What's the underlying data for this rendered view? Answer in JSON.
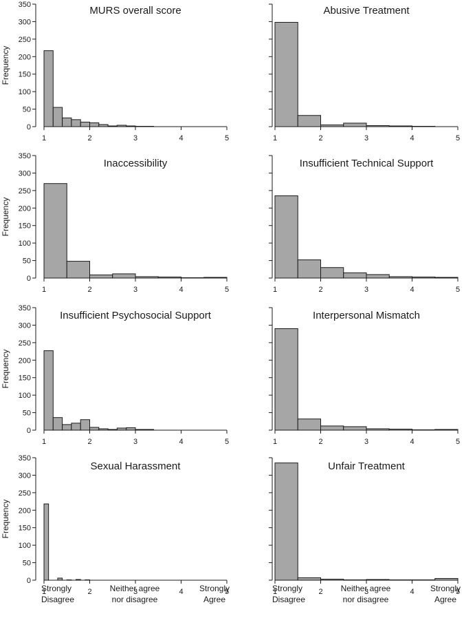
{
  "colors": {
    "bar_fill": "#a6a6a6",
    "bar_stroke": "#1a1a1a",
    "axis": "#1a1a1a"
  },
  "x_category_labels": {
    "strongly_disagree": [
      "Strongly",
      "Disagree"
    ],
    "neither": [
      "Neither agree",
      "nor disagree"
    ],
    "strongly_agree": [
      "Strongly",
      "Agree"
    ]
  },
  "chart_data": [
    {
      "type": "bar",
      "title": "MURS overall score",
      "ylabel": "Frequency",
      "xlim": [
        1,
        5
      ],
      "ylim": [
        0,
        350
      ],
      "xticks": [
        1,
        2,
        3,
        4,
        5
      ],
      "yticks": [
        0,
        50,
        100,
        150,
        200,
        250,
        300,
        350
      ],
      "bins": [
        [
          1.0,
          1.2
        ],
        [
          1.2,
          1.4
        ],
        [
          1.4,
          1.6
        ],
        [
          1.6,
          1.8
        ],
        [
          1.8,
          2.0
        ],
        [
          2.0,
          2.2
        ],
        [
          2.2,
          2.4
        ],
        [
          2.4,
          2.6
        ],
        [
          2.6,
          2.8
        ],
        [
          2.8,
          3.0
        ],
        [
          3.0,
          3.2
        ],
        [
          3.2,
          3.4
        ]
      ],
      "values": [
        217,
        55,
        25,
        20,
        13,
        11,
        6,
        2,
        4,
        2,
        1,
        1
      ]
    },
    {
      "type": "bar",
      "title": "Abusive Treatment",
      "ylabel": "",
      "xlim": [
        1,
        5
      ],
      "ylim": [
        0,
        350
      ],
      "xticks": [
        1,
        2,
        3,
        4,
        5
      ],
      "yticks": [],
      "bins": [
        [
          1.0,
          1.5
        ],
        [
          1.5,
          2.0
        ],
        [
          2.0,
          2.5
        ],
        [
          2.5,
          3.0
        ],
        [
          3.0,
          3.5
        ],
        [
          3.5,
          4.0
        ],
        [
          4.0,
          4.5
        ]
      ],
      "values": [
        298,
        32,
        5,
        10,
        3,
        2,
        1
      ]
    },
    {
      "type": "bar",
      "title": "Inaccessibility",
      "ylabel": "Frequency",
      "xlim": [
        1,
        5
      ],
      "ylim": [
        0,
        350
      ],
      "xticks": [
        1,
        2,
        3,
        4,
        5
      ],
      "yticks": [
        0,
        50,
        100,
        150,
        200,
        250,
        300,
        350
      ],
      "bins": [
        [
          1.0,
          1.5
        ],
        [
          1.5,
          2.0
        ],
        [
          2.0,
          2.5
        ],
        [
          2.5,
          3.0
        ],
        [
          3.0,
          3.5
        ],
        [
          3.5,
          4.0
        ],
        [
          4.0,
          4.5
        ],
        [
          4.5,
          5.0
        ]
      ],
      "values": [
        270,
        48,
        9,
        12,
        4,
        3,
        1,
        2
      ]
    },
    {
      "type": "bar",
      "title": "Insufficient Technical Support",
      "ylabel": "",
      "xlim": [
        1,
        5
      ],
      "ylim": [
        0,
        350
      ],
      "xticks": [
        1,
        2,
        3,
        4,
        5
      ],
      "yticks": [],
      "bins": [
        [
          1.0,
          1.5
        ],
        [
          1.5,
          2.0
        ],
        [
          2.0,
          2.5
        ],
        [
          2.5,
          3.0
        ],
        [
          3.0,
          3.5
        ],
        [
          3.5,
          4.0
        ],
        [
          4.0,
          4.5
        ],
        [
          4.5,
          5.0
        ]
      ],
      "values": [
        235,
        52,
        30,
        15,
        10,
        4,
        3,
        2
      ]
    },
    {
      "type": "bar",
      "title": "Insufficient Psychosocial Support",
      "ylabel": "Frequency",
      "xlim": [
        1,
        5
      ],
      "ylim": [
        0,
        350
      ],
      "xticks": [
        1,
        2,
        3,
        4,
        5
      ],
      "yticks": [
        0,
        50,
        100,
        150,
        200,
        250,
        300,
        350
      ],
      "bins": [
        [
          1.0,
          1.2
        ],
        [
          1.2,
          1.4
        ],
        [
          1.4,
          1.6
        ],
        [
          1.6,
          1.8
        ],
        [
          1.8,
          2.0
        ],
        [
          2.0,
          2.2
        ],
        [
          2.2,
          2.4
        ],
        [
          2.4,
          2.6
        ],
        [
          2.6,
          2.8
        ],
        [
          2.8,
          3.0
        ],
        [
          3.0,
          3.2
        ],
        [
          3.2,
          3.4
        ]
      ],
      "values": [
        227,
        36,
        16,
        20,
        30,
        8,
        4,
        2,
        6,
        7,
        2,
        2
      ]
    },
    {
      "type": "bar",
      "title": "Interpersonal Mismatch",
      "ylabel": "",
      "xlim": [
        1,
        5
      ],
      "ylim": [
        0,
        350
      ],
      "xticks": [
        1,
        2,
        3,
        4,
        5
      ],
      "yticks": [],
      "bins": [
        [
          1.0,
          1.5
        ],
        [
          1.5,
          2.0
        ],
        [
          2.0,
          2.5
        ],
        [
          2.5,
          3.0
        ],
        [
          3.0,
          3.5
        ],
        [
          3.5,
          4.0
        ],
        [
          4.0,
          4.5
        ],
        [
          4.5,
          5.0
        ]
      ],
      "values": [
        290,
        32,
        12,
        10,
        4,
        3,
        1,
        2
      ]
    },
    {
      "type": "bar",
      "title": "Sexual Harassment",
      "ylabel": "Frequency",
      "xlim": [
        1,
        5
      ],
      "ylim": [
        0,
        350
      ],
      "xticks": [
        1,
        2,
        3,
        4,
        5
      ],
      "yticks": [
        0,
        50,
        100,
        150,
        200,
        250,
        300,
        350
      ],
      "bins": [
        [
          1.0,
          1.1
        ],
        [
          1.1,
          1.2
        ],
        [
          1.2,
          1.3
        ],
        [
          1.3,
          1.4
        ],
        [
          1.4,
          1.5
        ],
        [
          1.5,
          1.6
        ],
        [
          1.6,
          1.7
        ],
        [
          1.7,
          1.8
        ],
        [
          1.8,
          1.9
        ],
        [
          1.9,
          2.0
        ]
      ],
      "values": [
        218,
        0,
        0,
        6,
        0,
        1,
        0,
        2,
        0,
        1
      ]
    },
    {
      "type": "bar",
      "title": "Unfair Treatment",
      "ylabel": "",
      "xlim": [
        1,
        5
      ],
      "ylim": [
        0,
        350
      ],
      "xticks": [
        1,
        2,
        3,
        4,
        5
      ],
      "yticks": [],
      "bins": [
        [
          1.0,
          1.5
        ],
        [
          1.5,
          2.0
        ],
        [
          2.0,
          2.5
        ],
        [
          2.5,
          3.0
        ],
        [
          3.0,
          3.5
        ],
        [
          3.5,
          4.0
        ],
        [
          4.0,
          4.5
        ],
        [
          4.5,
          5.0
        ]
      ],
      "values": [
        335,
        7,
        3,
        1,
        2,
        1,
        1,
        5
      ]
    }
  ]
}
